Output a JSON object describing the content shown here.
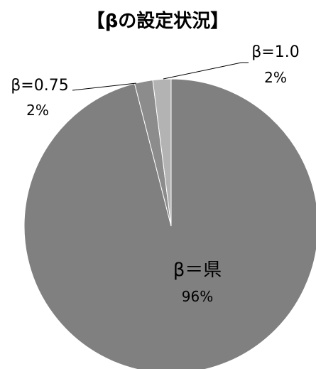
{
  "chart_data": {
    "type": "pie",
    "title": "【βの設定状況】",
    "slices": [
      {
        "label": "β＝県",
        "value": 96,
        "value_label": "96%",
        "color": "#808080"
      },
      {
        "label": "β=0.75",
        "value": 2,
        "value_label": "2%",
        "color": "#8c8c8c"
      },
      {
        "label": "β=1.0",
        "value": 2,
        "value_label": "2%",
        "color": "#b3b3b3"
      }
    ],
    "start_angle": "12 o'clock",
    "direction": "clockwise",
    "legend": "none"
  }
}
